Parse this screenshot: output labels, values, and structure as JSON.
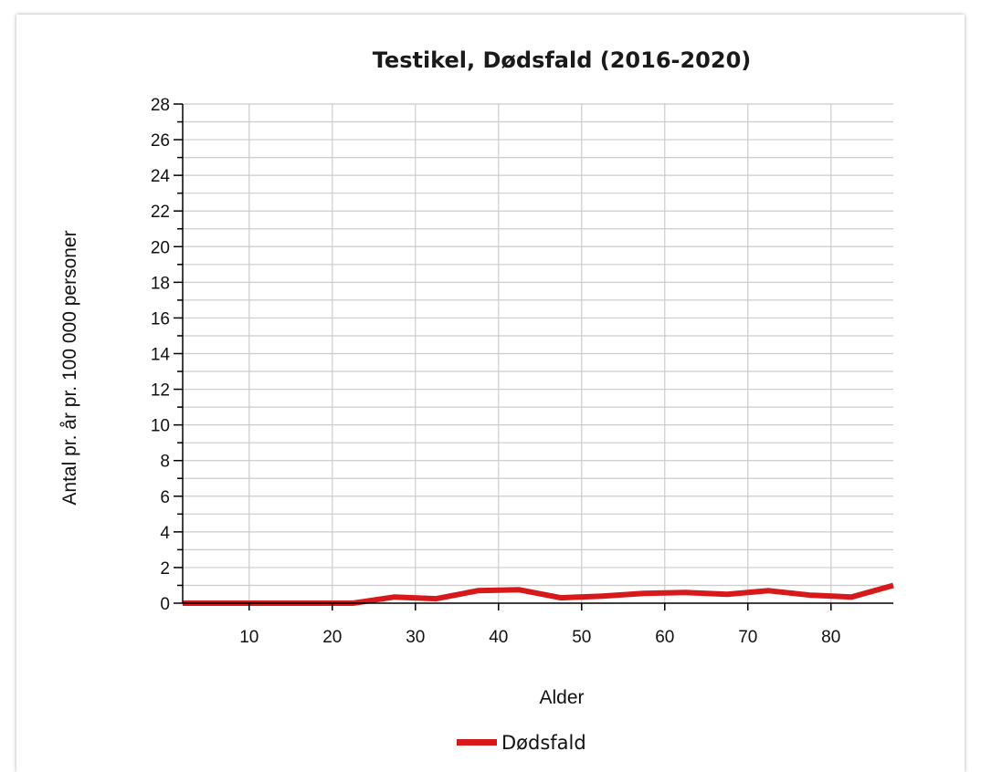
{
  "chart_data": {
    "type": "line",
    "title": "Testikel, Dødsfald (2016-2020)",
    "xlabel": "Alder",
    "ylabel": "Antal pr. år pr. 100 000 personer",
    "xlim": [
      2,
      87.5
    ],
    "ylim": [
      0,
      28
    ],
    "x_ticks": [
      10,
      20,
      30,
      40,
      50,
      60,
      70,
      80
    ],
    "y_ticks": [
      0,
      2,
      4,
      6,
      8,
      10,
      12,
      14,
      16,
      18,
      20,
      22,
      24,
      26,
      28
    ],
    "grid": true,
    "legend_position": "bottom",
    "series": [
      {
        "name": "Dødsfald",
        "color": "#d7191c",
        "x": [
          2,
          7.5,
          12.5,
          17.5,
          22.5,
          27.5,
          32.5,
          37.5,
          42.5,
          47.5,
          52.5,
          57.5,
          62.5,
          67.5,
          72.5,
          77.5,
          82.5,
          87.5
        ],
        "values": [
          0,
          0,
          0,
          0,
          0,
          0.35,
          0.25,
          0.7,
          0.75,
          0.3,
          0.4,
          0.55,
          0.6,
          0.5,
          0.7,
          0.45,
          0.35,
          1.0
        ]
      }
    ]
  }
}
